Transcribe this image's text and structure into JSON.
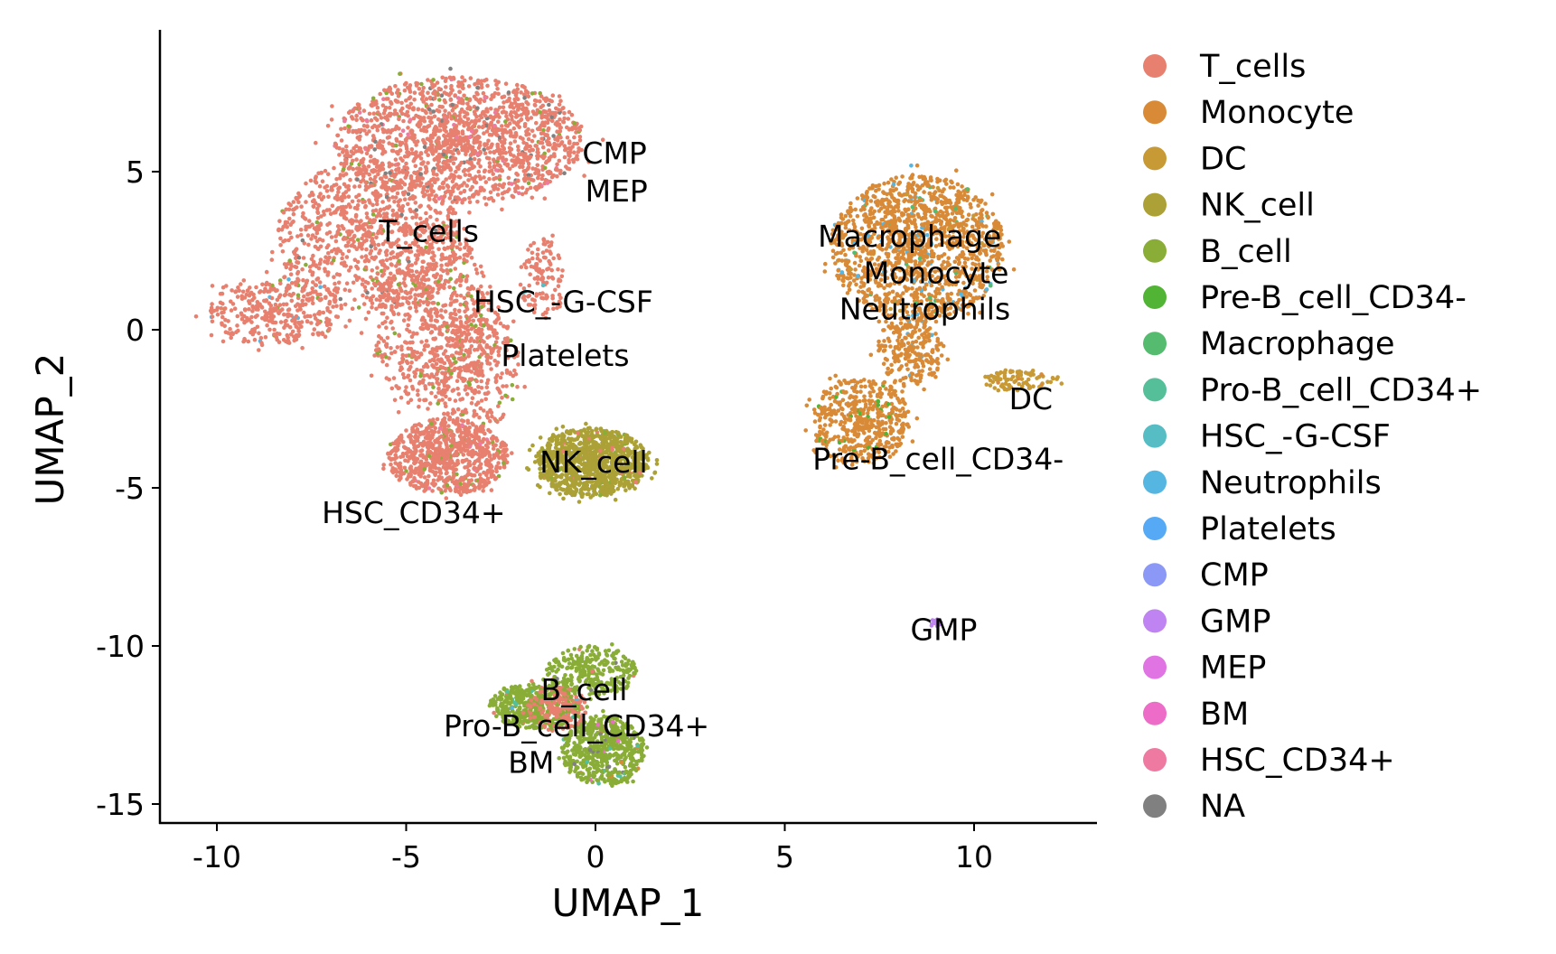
{
  "chart_data": {
    "type": "scatter",
    "xlabel": "UMAP_1",
    "ylabel": "UMAP_2",
    "xlim": [
      -11.5,
      13.2
    ],
    "ylim": [
      -15.5,
      9.2
    ],
    "xticks": [
      -10,
      -5,
      0,
      5,
      10
    ],
    "yticks": [
      5,
      0,
      -5,
      -10,
      -15
    ],
    "xtick_labels": [
      "-10",
      "-5",
      "0",
      "5",
      "10"
    ],
    "ytick_labels": [
      "5",
      "0",
      "-5",
      "-10",
      "-15"
    ],
    "grid": false,
    "legend_position": "right",
    "legend": [
      {
        "name": "T_cells",
        "color": "#E8806F"
      },
      {
        "name": "Monocyte",
        "color": "#D98A37"
      },
      {
        "name": "DC",
        "color": "#C79A36"
      },
      {
        "name": "NK_cell",
        "color": "#ABA136"
      },
      {
        "name": "B_cell",
        "color": "#89AD37"
      },
      {
        "name": "Pre-B_cell_CD34-",
        "color": "#52B435"
      },
      {
        "name": "Macrophage",
        "color": "#55BB6E"
      },
      {
        "name": "Pro-B_cell_CD34+",
        "color": "#55BF9A"
      },
      {
        "name": "HSC_-G-CSF",
        "color": "#55BDC3"
      },
      {
        "name": "Neutrophils",
        "color": "#55B6E2"
      },
      {
        "name": "Platelets",
        "color": "#55A9F5"
      },
      {
        "name": "CMP",
        "color": "#8C98F5"
      },
      {
        "name": "GMP",
        "color": "#BF84F2"
      },
      {
        "name": "MEP",
        "color": "#DF74E2"
      },
      {
        "name": "BM",
        "color": "#EC6CC8"
      },
      {
        "name": "HSC_CD34+",
        "color": "#EE7AA2"
      },
      {
        "name": "NA",
        "color": "#808080"
      }
    ],
    "cluster_labels": [
      {
        "text": "T_cells",
        "x": -4.4,
        "y": 3.1
      },
      {
        "text": "CMP",
        "x": -0.45,
        "y": 5.0
      },
      {
        "text": "MEP",
        "x": -0.4,
        "y": 5.0
      },
      {
        "text": "HSC_-G-CSF",
        "x": -0.85,
        "y": 0.25
      },
      {
        "text": "Platelets",
        "x": -0.8,
        "y": -0.2
      },
      {
        "text": "NK_cell",
        "x": -0.05,
        "y": -4.2
      },
      {
        "text": "HSC_CD34+",
        "x": -4.8,
        "y": -5.8
      },
      {
        "text": "Macrophage",
        "x": 8.3,
        "y": 1.8
      },
      {
        "text": "Monocyte",
        "x": 9.0,
        "y": 1.65
      },
      {
        "text": "Neutrophils",
        "x": 8.7,
        "y": 1.1
      },
      {
        "text": "DC",
        "x": 11.5,
        "y": -2.2
      },
      {
        "text": "Pre-B_cell_CD34-",
        "x": 9.05,
        "y": -4.1
      },
      {
        "text": "GMP",
        "x": 9.2,
        "y": -9.5
      },
      {
        "text": "B_cell",
        "x": -0.3,
        "y": -12.25
      },
      {
        "text": "Pro-B_cell_CD34+",
        "x": -0.5,
        "y": -12.65
      },
      {
        "text": "BM",
        "x": -1.7,
        "y": -12.95
      }
    ],
    "point_regions": [
      {
        "type": "T_cells",
        "center": [
          -3.6,
          6.0
        ],
        "spread": [
          3.3,
          2.0
        ],
        "n": 1600,
        "mix": [
          "HSC_CD34+",
          "NA",
          "B_cell"
        ]
      },
      {
        "type": "T_cells",
        "center": [
          -6.0,
          3.0
        ],
        "spread": [
          2.4,
          2.4
        ],
        "n": 900,
        "mix": [
          "B_cell",
          "NA"
        ]
      },
      {
        "type": "T_cells",
        "center": [
          -8.5,
          0.6
        ],
        "spread": [
          1.8,
          1.1
        ],
        "n": 350,
        "mix": [
          "B_cell",
          "B_cell",
          "Neutrophils"
        ]
      },
      {
        "type": "T_cells",
        "center": [
          -4.4,
          0.5
        ],
        "spread": [
          1.6,
          3.0
        ],
        "n": 700,
        "mix": [
          "B_cell"
        ]
      },
      {
        "type": "T_cells",
        "center": [
          -3.2,
          -1.2
        ],
        "spread": [
          1.2,
          2.0
        ],
        "n": 350,
        "mix": [
          "B_cell"
        ]
      },
      {
        "type": "T_cells",
        "center": [
          -3.9,
          -4.0
        ],
        "spread": [
          1.6,
          1.2
        ],
        "n": 800,
        "mix": [
          "B_cell",
          "B_cell",
          "HSC_CD34+"
        ]
      },
      {
        "type": "T_cells",
        "center": [
          -1.4,
          1.6
        ],
        "spread": [
          0.6,
          1.3
        ],
        "n": 120,
        "mix": [
          "HSC_-G-CSF"
        ]
      },
      {
        "type": "NK_cell",
        "center": [
          -0.1,
          -4.2
        ],
        "spread": [
          1.5,
          1.1
        ],
        "n": 1100,
        "mix": [
          "T_cells",
          "B_cell"
        ]
      },
      {
        "type": "Monocyte",
        "center": [
          8.5,
          2.6
        ],
        "spread": [
          2.3,
          2.3
        ],
        "n": 1400,
        "mix": [
          "Neutrophils",
          "Neutrophils",
          "Macrophage",
          "DC"
        ]
      },
      {
        "type": "Monocyte",
        "center": [
          8.3,
          -0.6
        ],
        "spread": [
          0.9,
          1.2
        ],
        "n": 250,
        "mix": [
          "Neutrophils",
          "Neutrophils"
        ]
      },
      {
        "type": "Monocyte",
        "center": [
          7.0,
          -2.9
        ],
        "spread": [
          1.3,
          1.4
        ],
        "n": 500,
        "mix": [
          "Pre-B_cell_CD34-"
        ]
      },
      {
        "type": "DC",
        "center": [
          11.2,
          -1.6
        ],
        "spread": [
          1.0,
          0.35
        ],
        "n": 90,
        "mix": [
          "Monocyte"
        ]
      },
      {
        "type": "GMP",
        "center": [
          9.0,
          -9.3
        ],
        "spread": [
          0.15,
          0.15
        ],
        "n": 20,
        "mix": [
          "B_cell"
        ]
      },
      {
        "type": "B_cell",
        "center": [
          -1.6,
          -11.9
        ],
        "spread": [
          1.2,
          0.7
        ],
        "n": 500,
        "mix": [
          "Pro-B_cell_CD34+",
          "T_cells",
          "Neutrophils"
        ]
      },
      {
        "type": "B_cell",
        "center": [
          0.2,
          -13.3
        ],
        "spread": [
          1.1,
          1.1
        ],
        "n": 600,
        "mix": [
          "Pro-B_cell_CD34+",
          "NA",
          "Monocyte",
          "BM"
        ]
      },
      {
        "type": "B_cell",
        "center": [
          -0.1,
          -10.8
        ],
        "spread": [
          1.2,
          0.8
        ],
        "n": 300,
        "mix": [
          "T_cells",
          "NA"
        ]
      },
      {
        "type": "T_cells",
        "center": [
          -1.0,
          -12.0
        ],
        "spread": [
          0.8,
          0.7
        ],
        "n": 160,
        "mix": [
          "B_cell"
        ]
      }
    ]
  }
}
